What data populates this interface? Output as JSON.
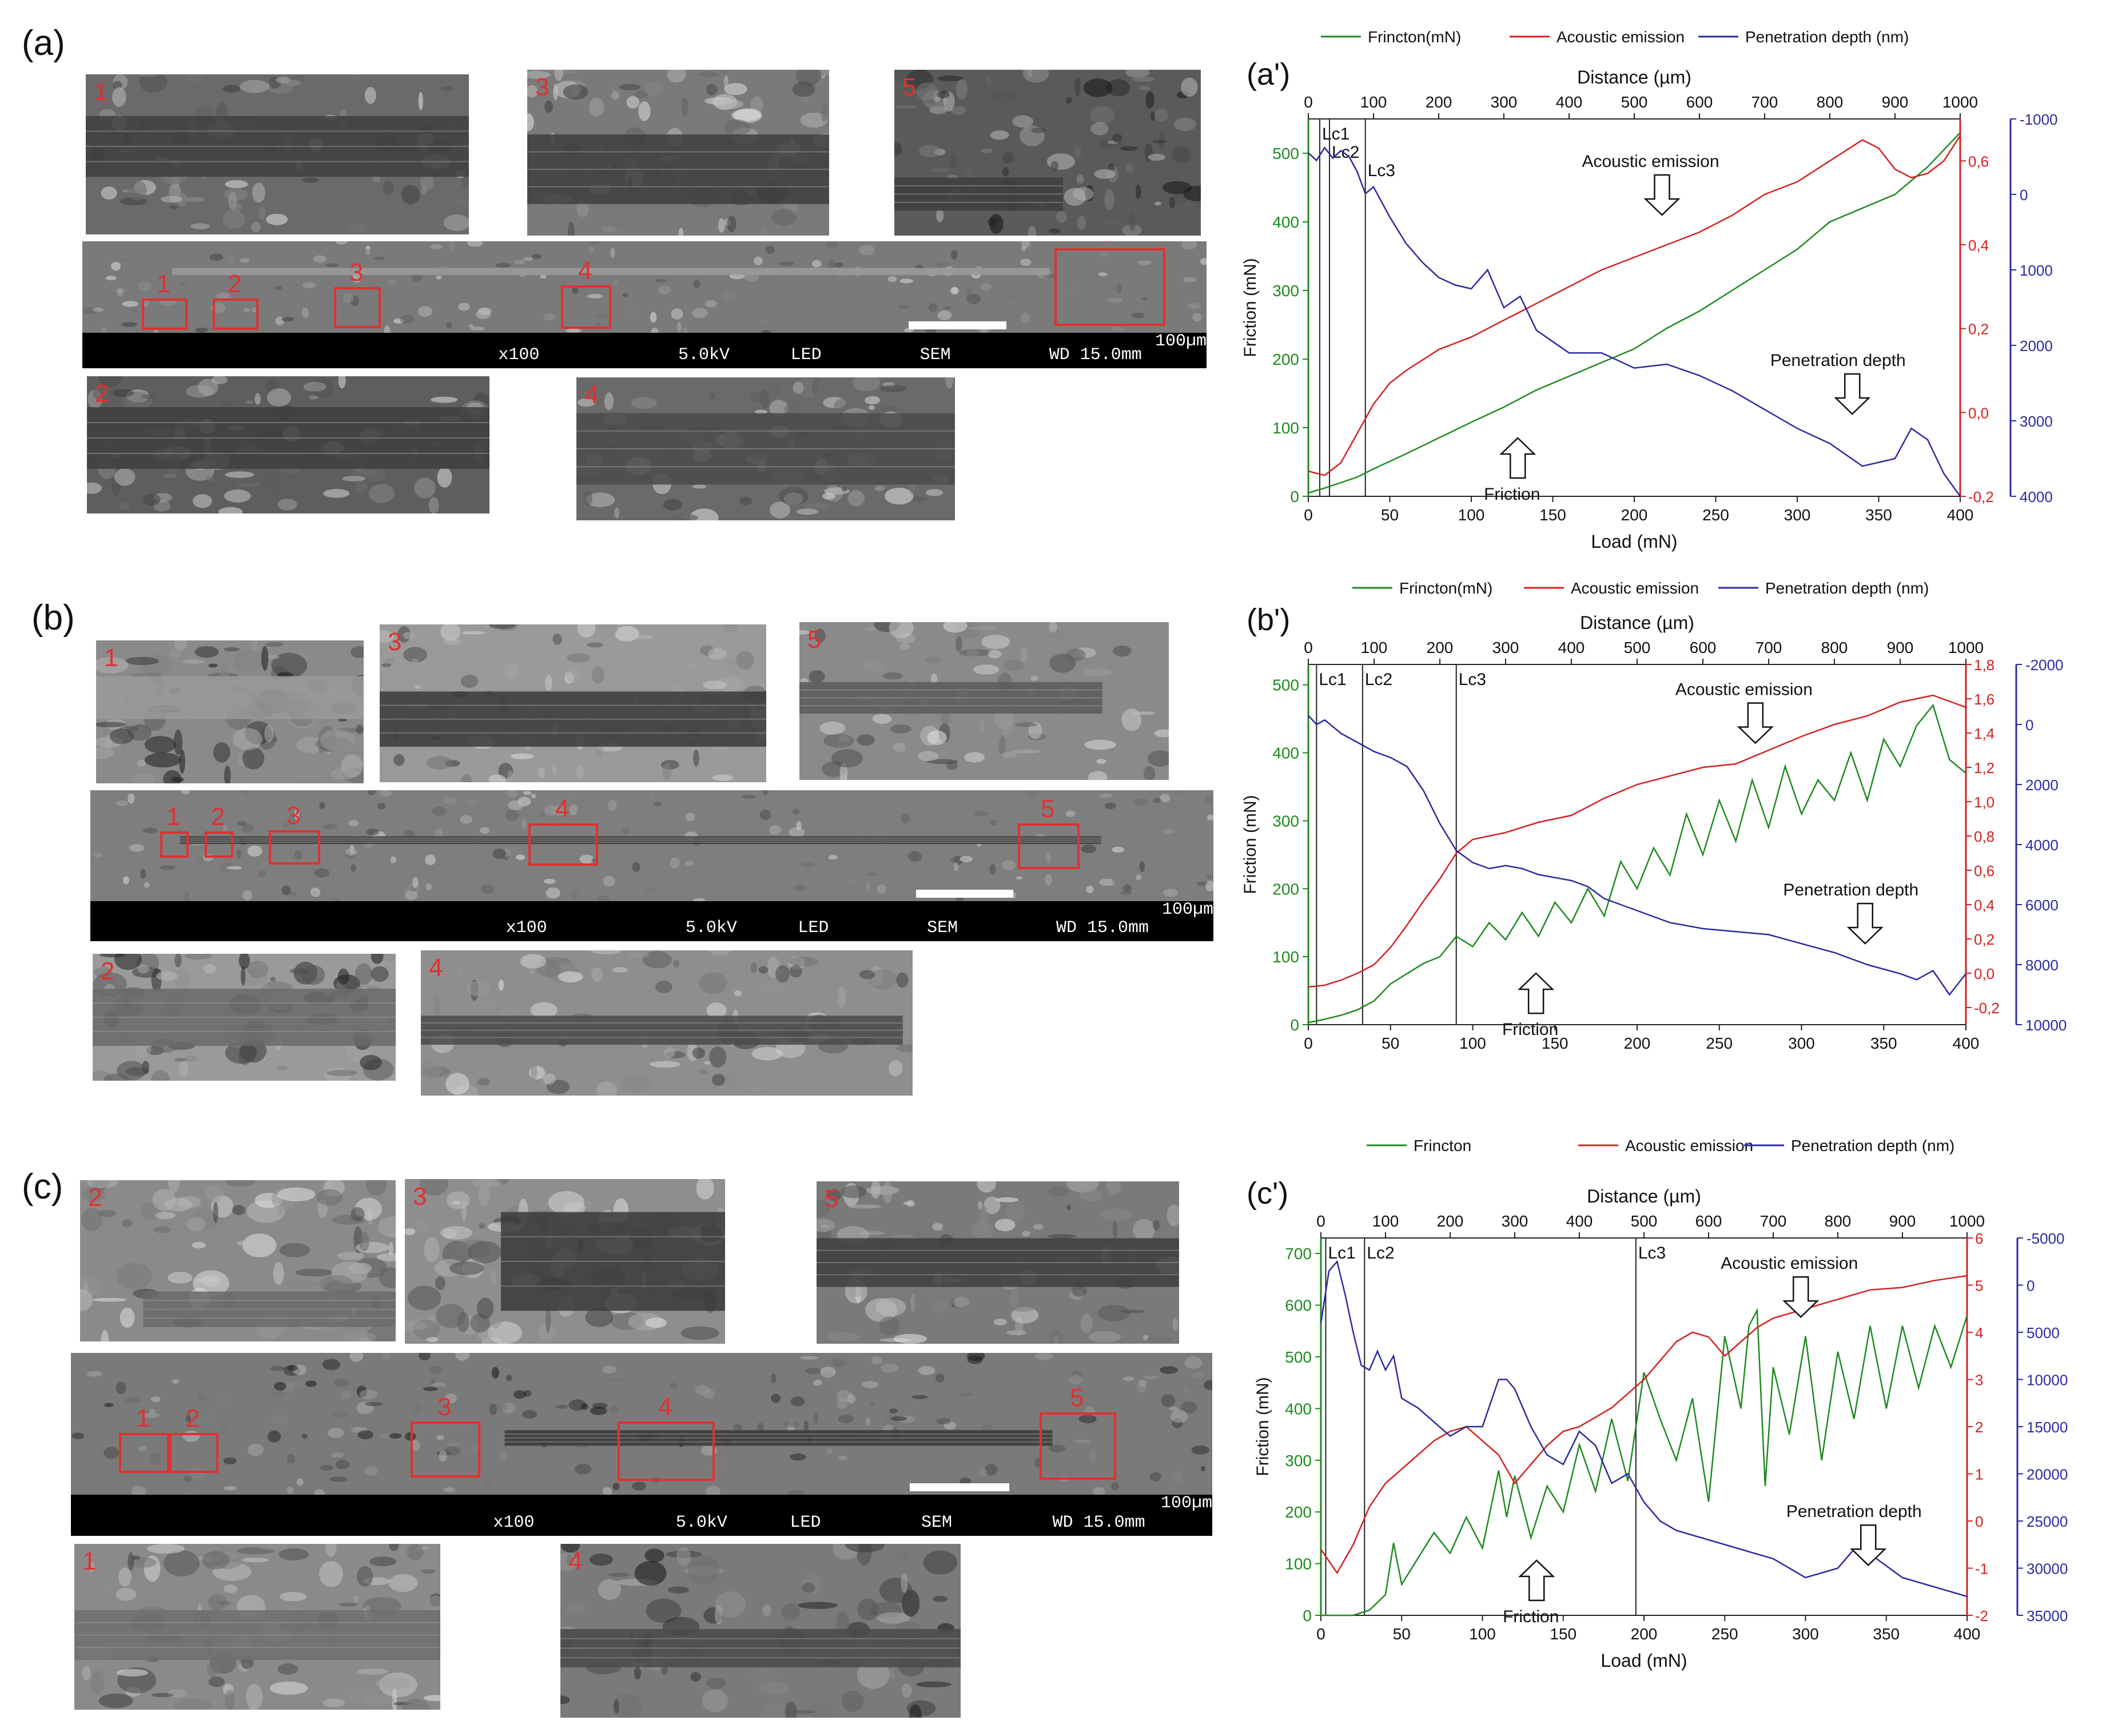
{
  "figure": {
    "rows": [
      {
        "id": "a",
        "panel_label": "(a)",
        "sem": {
          "inset_labels": [
            "1",
            "3",
            "5",
            "2",
            "4"
          ],
          "roi_labels": [
            "1",
            "2",
            "3",
            "4",
            "5"
          ],
          "scale_text": "100µm",
          "mag": "x100",
          "kv": "5.0kV",
          "det": "LED",
          "mode": "SEM",
          "wd": "WD 15.0mm"
        },
        "chart_index": 0
      },
      {
        "id": "b",
        "panel_label": "(b)",
        "sem": {
          "inset_labels": [
            "1",
            "3",
            "5",
            "2",
            "4"
          ],
          "roi_labels": [
            "1",
            "2",
            "3",
            "4",
            "5"
          ],
          "scale_text": "100µm",
          "mag": "x100",
          "kv": "5.0kV",
          "det": "LED",
          "mode": "SEM",
          "wd": "WD 15.0mm"
        },
        "chart_index": 1
      },
      {
        "id": "c",
        "panel_label": "(c)",
        "sem": {
          "inset_labels": [
            "2",
            "3",
            "5",
            "1",
            "4"
          ],
          "roi_labels": [
            "1",
            "2",
            "3",
            "4",
            "5"
          ],
          "scale_text": "100µm",
          "mag": "x100",
          "kv": "5.0kV",
          "det": "LED",
          "mode": "SEM",
          "wd": "WD 15.0mm"
        },
        "chart_index": 2
      }
    ]
  },
  "chart_data": [
    {
      "type": "line",
      "panel_label": "(a')",
      "legend": [
        "Frincton(mN)",
        "Acoustic emission",
        "Penetration depth (nm)"
      ],
      "legend_placement": "top",
      "top_axis_label": "Distance (µm)",
      "top_ticks": [
        0,
        100,
        200,
        300,
        400,
        500,
        600,
        700,
        800,
        900,
        1000
      ],
      "xlabel": "Load (mN)",
      "xlim": [
        0,
        400
      ],
      "x_ticks": [
        0,
        50,
        100,
        150,
        200,
        250,
        300,
        350,
        400
      ],
      "ylabel": "Friction (mN)",
      "ylim": [
        0,
        550
      ],
      "y_ticks": [
        0,
        100,
        200,
        300,
        400,
        500
      ],
      "y2_ticks": [
        "-0,2",
        "0,0",
        "0,2",
        "0,4",
        "0,6"
      ],
      "y2lim": [
        -0.2,
        0.7
      ],
      "y3_ticks": [
        "-1000",
        "0",
        "1000",
        "2000",
        "3000",
        "4000"
      ],
      "y3lim": [
        -1000,
        4000
      ],
      "y3_inverted": true,
      "critical_loads": [
        {
          "name": "Lc1",
          "x": 7
        },
        {
          "name": "Lc2",
          "x": 13
        },
        {
          "name": "Lc3",
          "x": 35
        }
      ],
      "annotations": [
        {
          "text": "Acoustic emission",
          "x": 210,
          "y": 480
        },
        {
          "text": "Friction",
          "x": 125,
          "y": 20
        },
        {
          "text": "Penetration depth",
          "x": 325,
          "y": 190
        }
      ],
      "series": [
        {
          "name": "Frincton(mN)",
          "axis": "left",
          "color": "#1e8a1e",
          "x": [
            0,
            10,
            20,
            30,
            40,
            60,
            80,
            100,
            120,
            140,
            160,
            180,
            200,
            220,
            240,
            260,
            280,
            300,
            320,
            340,
            360,
            380,
            400
          ],
          "y": [
            5,
            12,
            20,
            28,
            40,
            62,
            85,
            108,
            130,
            155,
            175,
            195,
            215,
            245,
            270,
            300,
            330,
            360,
            400,
            420,
            440,
            480,
            530
          ]
        },
        {
          "name": "Acoustic emission",
          "axis": "right",
          "color": "#d42020",
          "x": [
            0,
            10,
            20,
            30,
            40,
            50,
            60,
            80,
            100,
            120,
            140,
            160,
            180,
            200,
            220,
            240,
            260,
            280,
            300,
            320,
            340,
            350,
            360,
            370,
            380,
            390,
            400
          ],
          "y": [
            -0.14,
            -0.15,
            -0.12,
            -0.05,
            0.02,
            0.07,
            0.1,
            0.15,
            0.18,
            0.22,
            0.26,
            0.3,
            0.34,
            0.37,
            0.4,
            0.43,
            0.47,
            0.52,
            0.55,
            0.6,
            0.65,
            0.63,
            0.58,
            0.56,
            0.57,
            0.6,
            0.66
          ]
        },
        {
          "name": "Penetration depth (nm)",
          "axis": "right2",
          "color": "#2a2aa0",
          "x": [
            0,
            5,
            10,
            15,
            20,
            25,
            30,
            35,
            40,
            50,
            60,
            70,
            80,
            90,
            100,
            110,
            120,
            130,
            140,
            160,
            180,
            200,
            220,
            240,
            260,
            280,
            300,
            320,
            340,
            360,
            370,
            380,
            390,
            400
          ],
          "y": [
            -550,
            -450,
            -620,
            -480,
            -580,
            -500,
            -300,
            -10,
            -100,
            300,
            650,
            900,
            1100,
            1200,
            1250,
            1000,
            1500,
            1350,
            1800,
            2100,
            2100,
            2300,
            2250,
            2400,
            2600,
            2850,
            3100,
            3300,
            3600,
            3500,
            3100,
            3250,
            3700,
            4000
          ]
        }
      ]
    },
    {
      "type": "line",
      "panel_label": "(b')",
      "legend": [
        "Frincton(mN)",
        "Acoustic emission",
        "Penetration depth (nm)"
      ],
      "legend_placement": "top",
      "top_axis_label": "Distance (µm)",
      "top_ticks": [
        0,
        100,
        200,
        300,
        400,
        500,
        600,
        700,
        800,
        900,
        1000
      ],
      "xlabel": "",
      "xlim": [
        0,
        400
      ],
      "x_ticks": [
        0,
        50,
        100,
        150,
        200,
        250,
        300,
        350,
        400
      ],
      "ylabel": "Friction (mN)",
      "ylim": [
        0,
        530
      ],
      "y_ticks": [
        0,
        100,
        200,
        300,
        400,
        500
      ],
      "y2_ticks": [
        "-0,2",
        "0,0",
        "0,2",
        "0,4",
        "0,6",
        "0,8",
        "1,0",
        "1,2",
        "1,4",
        "1,6",
        "1,8"
      ],
      "y2lim": [
        -0.3,
        1.8
      ],
      "y3_ticks": [
        "-2000",
        "0",
        "2000",
        "4000",
        "6000",
        "8000",
        "10000"
      ],
      "y3lim": [
        -2000,
        10000
      ],
      "y3_inverted": true,
      "critical_loads": [
        {
          "name": "Lc1",
          "x": 5
        },
        {
          "name": "Lc2",
          "x": 33
        },
        {
          "name": "Lc3",
          "x": 90
        }
      ],
      "annotations": [
        {
          "text": "Acoustic emission",
          "x": 265,
          "y": 485
        },
        {
          "text": "Friction",
          "x": 135,
          "y": 10
        },
        {
          "text": "Penetration depth",
          "x": 330,
          "y": 190
        }
      ],
      "series": [
        {
          "name": "Frincton(mN)",
          "axis": "left",
          "color": "#1e8a1e",
          "x": [
            0,
            10,
            20,
            30,
            40,
            50,
            60,
            70,
            80,
            90,
            100,
            110,
            120,
            130,
            140,
            150,
            160,
            170,
            180,
            190,
            200,
            210,
            220,
            230,
            240,
            250,
            260,
            270,
            280,
            290,
            300,
            310,
            320,
            330,
            340,
            350,
            360,
            370,
            380,
            390,
            400
          ],
          "y": [
            3,
            8,
            14,
            22,
            35,
            60,
            75,
            90,
            100,
            130,
            115,
            150,
            125,
            165,
            130,
            180,
            150,
            200,
            160,
            240,
            200,
            260,
            220,
            310,
            250,
            330,
            270,
            360,
            290,
            380,
            310,
            360,
            330,
            400,
            330,
            420,
            380,
            440,
            470,
            390,
            370
          ]
        },
        {
          "name": "Acoustic emission",
          "axis": "right",
          "color": "#d42020",
          "x": [
            0,
            10,
            20,
            30,
            40,
            50,
            60,
            70,
            80,
            90,
            100,
            120,
            140,
            160,
            180,
            200,
            220,
            240,
            260,
            280,
            300,
            320,
            340,
            360,
            380,
            400
          ],
          "y": [
            -0.08,
            -0.07,
            -0.04,
            0.0,
            0.05,
            0.15,
            0.28,
            0.42,
            0.55,
            0.7,
            0.78,
            0.82,
            0.88,
            0.92,
            1.02,
            1.1,
            1.15,
            1.2,
            1.22,
            1.3,
            1.38,
            1.45,
            1.5,
            1.58,
            1.62,
            1.55
          ]
        },
        {
          "name": "Penetration depth (nm)",
          "axis": "right2",
          "color": "#2a2aa0",
          "x": [
            0,
            5,
            10,
            20,
            30,
            40,
            50,
            60,
            70,
            80,
            90,
            100,
            110,
            120,
            130,
            140,
            150,
            160,
            170,
            180,
            200,
            220,
            240,
            260,
            280,
            300,
            320,
            340,
            360,
            370,
            380,
            390,
            400
          ],
          "y": [
            -300,
            0,
            -150,
            300,
            600,
            900,
            1100,
            1400,
            2200,
            3300,
            4200,
            4600,
            4800,
            4700,
            4800,
            5000,
            5100,
            5200,
            5400,
            5800,
            6200,
            6600,
            6800,
            6900,
            7000,
            7300,
            7600,
            8000,
            8300,
            8500,
            8200,
            9000,
            8300
          ]
        }
      ]
    },
    {
      "type": "line",
      "panel_label": "(c')",
      "legend": [
        "Frincton",
        "Acoustic emission",
        "Penetration depth (nm)"
      ],
      "legend_placement": "top",
      "top_axis_label": "Distance (µm)",
      "top_ticks": [
        0,
        100,
        200,
        300,
        400,
        500,
        600,
        700,
        800,
        900,
        1000
      ],
      "xlabel": "Load (mN)",
      "xlim": [
        0,
        400
      ],
      "x_ticks": [
        0,
        50,
        100,
        150,
        200,
        250,
        300,
        350,
        400
      ],
      "ylabel": "Friction (mN)",
      "ylim": [
        0,
        730
      ],
      "y_ticks": [
        0,
        100,
        200,
        300,
        400,
        500,
        600,
        700
      ],
      "y2_ticks": [
        "-2",
        "-1",
        "0",
        "1",
        "2",
        "3",
        "4",
        "5",
        "6"
      ],
      "y2lim": [
        -2,
        6
      ],
      "y3_ticks": [
        "-5000",
        "0",
        "5000",
        "10000",
        "15000",
        "20000",
        "25000",
        "30000",
        "35000"
      ],
      "y3lim": [
        -5000,
        35000
      ],
      "y3_inverted": true,
      "critical_loads": [
        {
          "name": "Lc1",
          "x": 3
        },
        {
          "name": "Lc2",
          "x": 27
        },
        {
          "name": "Lc3",
          "x": 195
        }
      ],
      "annotations": [
        {
          "text": "Acoustic emission",
          "x": 290,
          "y": 670
        },
        {
          "text": "Friction",
          "x": 130,
          "y": 20
        },
        {
          "text": "Penetration depth",
          "x": 330,
          "y": 190
        }
      ],
      "series": [
        {
          "name": "Frincton",
          "axis": "left",
          "color": "#1e8a1e",
          "x": [
            0,
            10,
            20,
            30,
            40,
            45,
            50,
            60,
            70,
            80,
            90,
            100,
            110,
            115,
            120,
            130,
            140,
            150,
            160,
            170,
            180,
            190,
            200,
            210,
            220,
            230,
            240,
            250,
            260,
            265,
            270,
            275,
            280,
            290,
            300,
            310,
            320,
            330,
            340,
            350,
            360,
            370,
            380,
            390,
            400
          ],
          "y": [
            0,
            0,
            0,
            10,
            40,
            140,
            60,
            110,
            160,
            120,
            190,
            130,
            280,
            190,
            270,
            150,
            250,
            200,
            330,
            240,
            380,
            260,
            470,
            380,
            300,
            420,
            220,
            540,
            400,
            560,
            590,
            250,
            480,
            350,
            540,
            300,
            510,
            380,
            560,
            400,
            560,
            440,
            560,
            480,
            580
          ]
        },
        {
          "name": "Acoustic emission",
          "axis": "right",
          "color": "#d42020",
          "x": [
            0,
            10,
            20,
            30,
            40,
            50,
            60,
            70,
            80,
            90,
            100,
            110,
            120,
            130,
            140,
            150,
            160,
            170,
            180,
            190,
            200,
            210,
            220,
            230,
            240,
            250,
            260,
            270,
            280,
            300,
            320,
            340,
            360,
            380,
            400
          ],
          "y": [
            -0.6,
            -1.1,
            -0.5,
            0.3,
            0.8,
            1.1,
            1.4,
            1.7,
            1.9,
            2.0,
            1.7,
            1.4,
            0.8,
            1.2,
            1.6,
            1.9,
            2.0,
            2.2,
            2.4,
            2.7,
            3.0,
            3.4,
            3.8,
            4.0,
            3.9,
            3.5,
            3.8,
            4.1,
            4.3,
            4.5,
            4.7,
            4.9,
            4.95,
            5.1,
            5.2
          ]
        },
        {
          "name": "Penetration depth (nm)",
          "axis": "right2",
          "color": "#2a2aa0",
          "x": [
            0,
            5,
            10,
            15,
            20,
            25,
            30,
            35,
            40,
            45,
            50,
            60,
            70,
            80,
            90,
            100,
            110,
            115,
            120,
            130,
            140,
            150,
            160,
            170,
            180,
            190,
            200,
            210,
            220,
            240,
            260,
            280,
            300,
            320,
            330,
            340,
            360,
            380,
            400
          ],
          "y": [
            4000,
            -1500,
            -2500,
            1000,
            5000,
            8500,
            9000,
            7000,
            9000,
            7500,
            12000,
            13000,
            14500,
            16000,
            15000,
            15000,
            10000,
            10000,
            11000,
            15000,
            18000,
            19000,
            15500,
            17000,
            21000,
            20000,
            23000,
            25000,
            26000,
            27000,
            28000,
            29000,
            31000,
            30000,
            28000,
            28500,
            31000,
            32000,
            33000
          ]
        }
      ]
    }
  ]
}
